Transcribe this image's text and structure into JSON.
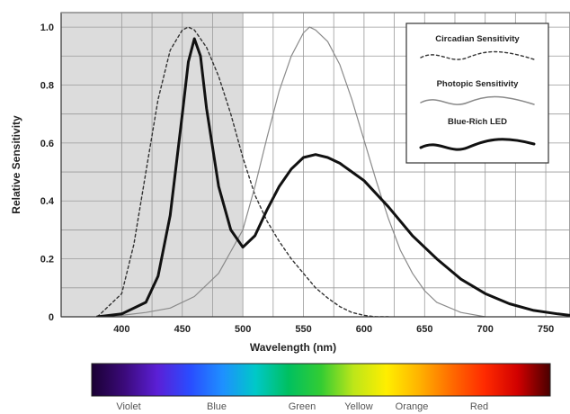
{
  "chart_data": {
    "type": "line",
    "xlabel": "Wavelength (nm)",
    "ylabel": "Relative Sensitivity",
    "xlim": [
      350,
      770
    ],
    "ylim": [
      0,
      1.05
    ],
    "x_ticks": [
      "400",
      "450",
      "500",
      "550",
      "600",
      "650",
      "700",
      "750"
    ],
    "y_ticks": [
      "0",
      "0.2",
      "0.4",
      "0.6",
      "0.8",
      "1.0"
    ],
    "grid": true,
    "legend_position": "top-right",
    "shaded_region": {
      "x_start": 350,
      "x_end": 500,
      "color": "#dcdcdc"
    },
    "series": [
      {
        "name": "Circadian Sensitivity",
        "style": "dashed",
        "color": "#333333",
        "x": [
          380,
          400,
          410,
          420,
          430,
          440,
          450,
          455,
          460,
          470,
          480,
          490,
          500,
          510,
          520,
          530,
          540,
          550,
          560,
          570,
          580,
          590,
          600,
          610,
          620
        ],
        "y": [
          0.0,
          0.08,
          0.25,
          0.5,
          0.75,
          0.92,
          0.99,
          1.0,
          0.99,
          0.93,
          0.83,
          0.7,
          0.55,
          0.42,
          0.33,
          0.26,
          0.2,
          0.15,
          0.1,
          0.065,
          0.035,
          0.015,
          0.005,
          0.0,
          0.0
        ]
      },
      {
        "name": "Photopic Sensitivity",
        "style": "solid",
        "color": "#8a8a8a",
        "x": [
          380,
          400,
          420,
          440,
          460,
          480,
          500,
          510,
          520,
          530,
          540,
          550,
          555,
          560,
          570,
          580,
          590,
          600,
          610,
          620,
          630,
          640,
          650,
          660,
          680,
          700
        ],
        "y": [
          0.0,
          0.005,
          0.015,
          0.03,
          0.07,
          0.15,
          0.3,
          0.45,
          0.62,
          0.78,
          0.9,
          0.98,
          1.0,
          0.99,
          0.95,
          0.87,
          0.75,
          0.61,
          0.47,
          0.34,
          0.23,
          0.15,
          0.09,
          0.05,
          0.015,
          0.0
        ]
      },
      {
        "name": "Blue-Rich LED",
        "style": "solid-bold",
        "color": "#111111",
        "x": [
          380,
          400,
          420,
          430,
          440,
          450,
          455,
          460,
          465,
          470,
          480,
          490,
          500,
          510,
          520,
          530,
          540,
          550,
          560,
          570,
          580,
          590,
          600,
          620,
          640,
          660,
          680,
          700,
          720,
          740,
          760,
          770
        ],
        "y": [
          0.0,
          0.01,
          0.05,
          0.14,
          0.35,
          0.7,
          0.88,
          0.96,
          0.9,
          0.72,
          0.45,
          0.3,
          0.24,
          0.28,
          0.37,
          0.45,
          0.51,
          0.55,
          0.56,
          0.55,
          0.53,
          0.5,
          0.47,
          0.38,
          0.28,
          0.2,
          0.13,
          0.08,
          0.045,
          0.022,
          0.01,
          0.005
        ]
      }
    ]
  },
  "spectrum": {
    "labels": [
      "Violet",
      "Blue",
      "Green",
      "Yellow",
      "Orange",
      "Red"
    ],
    "colors": [
      "#1a0033",
      "#3b0a7a",
      "#5b1fd6",
      "#2a4cff",
      "#1e90ff",
      "#00c8c8",
      "#00c060",
      "#33cc33",
      "#bde619",
      "#ffee00",
      "#ffb300",
      "#ff6a00",
      "#ff2a00",
      "#d10000",
      "#4a0000"
    ]
  }
}
